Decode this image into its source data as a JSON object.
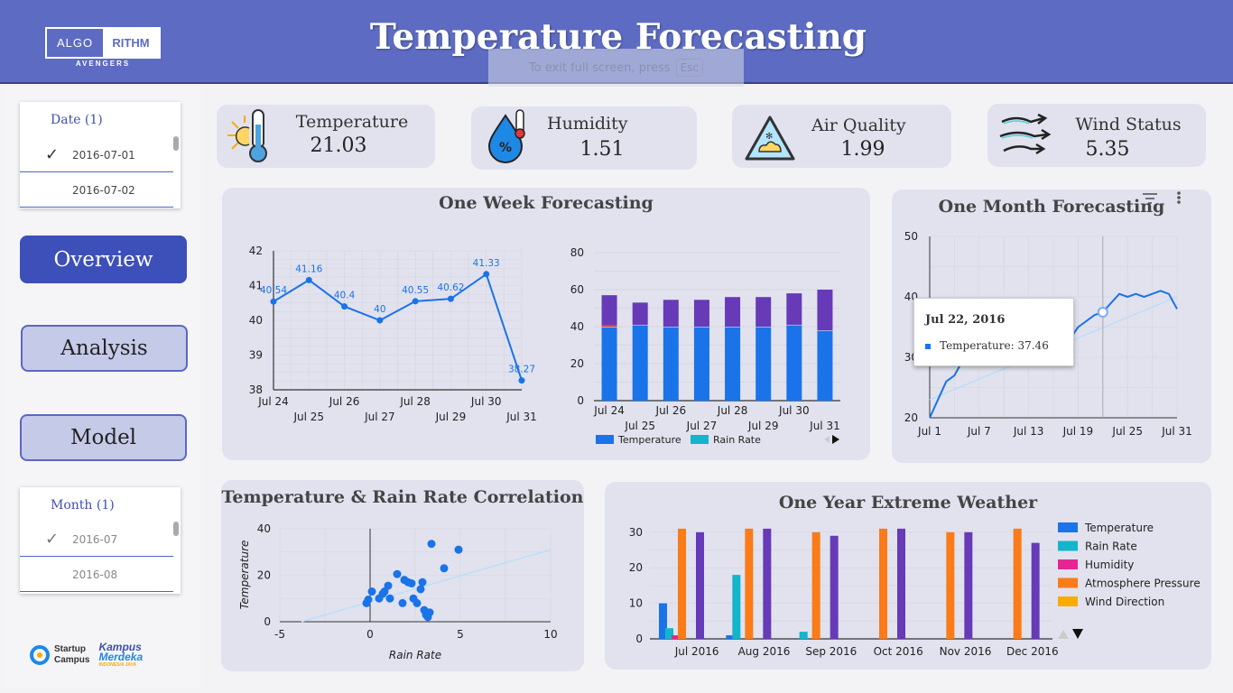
{
  "header": {
    "title": "Temperature Forecasting",
    "logo_left": "ALGO",
    "logo_right": "RITHM",
    "logo_sub": "AVENGERS",
    "fullscreen_hint": "To exit full screen, press",
    "fullscreen_key": "Esc"
  },
  "sidebar": {
    "date_filter": {
      "title": "Date (1)",
      "options": [
        "2016-07-01",
        "2016-07-02"
      ]
    },
    "nav": {
      "overview": "Overview",
      "analysis": "Analysis",
      "model": "Model"
    },
    "month_filter": {
      "title": "Month (1)",
      "options": [
        "2016-07",
        "2016-08"
      ]
    },
    "partners": {
      "startup1": "Startup",
      "startup2": "Campus",
      "kampus1": "Kampus",
      "kampus2": "Merdeka",
      "kampus3": "INDONESIA JAYA"
    }
  },
  "kpis": {
    "temperature": {
      "label": "Temperature",
      "value": "21.03"
    },
    "humidity": {
      "label": "Humidity",
      "value": "1.51"
    },
    "air_quality": {
      "label": "Air Quality",
      "value": "1.99"
    },
    "wind_status": {
      "label": "Wind Status",
      "value": "5.35"
    }
  },
  "colors": {
    "primary": "#5d6cc2",
    "temp": "#1a73e8",
    "rain": "#12b5cb",
    "humidity": "#e52592",
    "pressure": "#fa7b17",
    "wind": "#f9ab00",
    "purple": "#673ab7"
  },
  "tooltip": {
    "date": "Jul 22, 2016",
    "series": "Temperature: 37.46"
  },
  "chart_data": [
    {
      "type": "line",
      "title": "One Week Forecasting",
      "x": [
        "Jul 24",
        "Jul 25",
        "Jul 26",
        "Jul 27",
        "Jul 28",
        "Jul 29",
        "Jul 30",
        "Jul 31"
      ],
      "values": [
        40.54,
        41.16,
        40.4,
        40,
        40.55,
        40.62,
        41.33,
        38.27
      ],
      "labels": [
        "40.54",
        "41.16",
        "40.4",
        "40",
        "40.55",
        "40.62",
        "41.33",
        "38.27"
      ],
      "yticks": [
        "42",
        "41",
        "40",
        "39",
        "38"
      ],
      "ylim": [
        38,
        42
      ]
    },
    {
      "type": "bar",
      "stacked": true,
      "x": [
        "Jul 24",
        "Jul 25",
        "Jul 26",
        "Jul 27",
        "Jul 28",
        "Jul 29",
        "Jul 30",
        "Jul 31"
      ],
      "series": [
        {
          "name": "Temperature",
          "values": [
            40,
            41,
            40,
            40,
            40,
            40,
            41,
            38
          ]
        },
        {
          "name": "Rain Rate",
          "values": [
            1,
            0,
            0,
            0,
            0,
            0,
            0,
            0
          ]
        },
        {
          "values": [
            16,
            12,
            14.5,
            14.5,
            16,
            16,
            17,
            22
          ]
        }
      ],
      "yticks": [
        "80",
        "60",
        "40",
        "20",
        "0"
      ],
      "ylim": [
        0,
        80
      ]
    },
    {
      "type": "line",
      "title": "One Month Forecasting",
      "x": [
        "Jul 1",
        "Jul 7",
        "Jul 13",
        "Jul 19",
        "Jul 25",
        "Jul 31"
      ],
      "yticks": [
        "50",
        "40",
        "30",
        "20"
      ],
      "ylim": [
        20,
        50
      ],
      "values": [
        [
          1,
          20
        ],
        [
          2,
          23
        ],
        [
          3,
          26
        ],
        [
          4,
          27
        ],
        [
          5,
          29.5
        ],
        [
          6,
          31
        ],
        [
          7,
          31
        ],
        [
          8,
          32
        ],
        [
          9,
          33
        ],
        [
          10,
          34
        ],
        [
          11,
          35
        ],
        [
          12,
          34
        ],
        [
          13,
          35
        ],
        [
          14,
          34.5
        ],
        [
          15,
          35
        ],
        [
          16,
          34
        ],
        [
          17,
          36
        ],
        [
          18,
          33
        ],
        [
          19,
          35
        ],
        [
          20,
          36
        ],
        [
          21,
          37
        ],
        [
          22,
          37.46
        ],
        [
          23,
          39
        ],
        [
          24,
          40.5
        ],
        [
          25,
          40
        ],
        [
          26,
          40.5
        ],
        [
          27,
          40
        ],
        [
          28,
          40.5
        ],
        [
          29,
          41
        ],
        [
          30,
          40.5
        ],
        [
          31,
          38
        ]
      ],
      "trend": [
        [
          1,
          23
        ],
        [
          31,
          40
        ]
      ]
    },
    {
      "type": "scatter",
      "title": "Temperature & Rain Rate Correlation",
      "xlabel": "Rain Rate",
      "ylabel": "Temperature",
      "xticks": [
        "-5",
        "0",
        "5",
        "10"
      ],
      "yticks": [
        "40",
        "20",
        "0"
      ],
      "xlim": [
        -5,
        10
      ],
      "ylim": [
        0,
        40
      ],
      "points": [
        [
          -0.2,
          8
        ],
        [
          -0.1,
          9.5
        ],
        [
          0.1,
          13
        ],
        [
          0.5,
          10
        ],
        [
          0.7,
          12
        ],
        [
          0.8,
          13
        ],
        [
          1,
          15.5
        ],
        [
          1.1,
          10
        ],
        [
          1.5,
          20.5
        ],
        [
          1.8,
          8
        ],
        [
          1.9,
          18
        ],
        [
          2.1,
          17
        ],
        [
          2.3,
          16.5
        ],
        [
          2.4,
          10
        ],
        [
          2.6,
          8
        ],
        [
          2.8,
          14
        ],
        [
          2.9,
          17
        ],
        [
          3.0,
          5
        ],
        [
          3.1,
          3
        ],
        [
          3.2,
          2
        ],
        [
          3.3,
          4
        ],
        [
          3.4,
          33.5
        ],
        [
          4.1,
          23
        ],
        [
          4.9,
          31
        ]
      ],
      "trend": [
        [
          -3.8,
          0
        ],
        [
          10,
          31
        ]
      ]
    },
    {
      "type": "bar",
      "title": "One Year Extreme Weather",
      "x": [
        "Jul 2016",
        "Aug 2016",
        "Sep 2016",
        "Oct 2016",
        "Nov 2016",
        "Dec 2016"
      ],
      "yticks": [
        "30",
        "20",
        "10",
        "0"
      ],
      "ylim": [
        0,
        33
      ],
      "series": [
        {
          "name": "Temperature",
          "values": [
            10,
            1,
            0,
            0,
            0,
            0
          ]
        },
        {
          "name": "Rain Rate",
          "values": [
            3,
            18,
            2,
            0,
            0,
            0
          ]
        },
        {
          "name": "Humidity",
          "values": [
            1,
            0,
            0,
            0,
            0,
            0
          ]
        },
        {
          "name": "Atmosphere Pressure",
          "values": [
            31,
            31,
            30,
            31,
            30,
            31
          ]
        },
        {
          "name": "Wind Direction",
          "values": [
            0,
            0,
            0,
            0,
            0,
            0
          ]
        },
        {
          "values": [
            30,
            31,
            29,
            31,
            30,
            27
          ]
        }
      ]
    }
  ]
}
